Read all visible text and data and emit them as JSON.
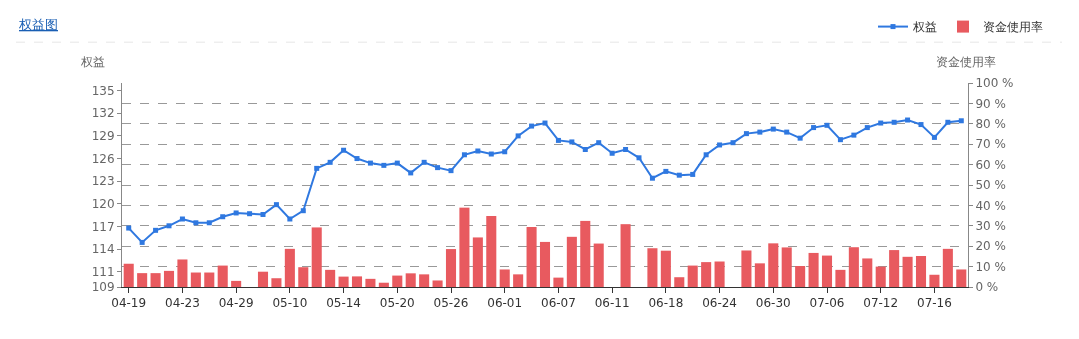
{
  "chart_data": {
    "type": "bar",
    "title": "权益图",
    "ylabel": "权益",
    "y2label": "资金使用率",
    "categories": [
      "04-19",
      null,
      null,
      null,
      "04-23",
      null,
      null,
      null,
      "04-29",
      null,
      null,
      null,
      "05-10",
      null,
      null,
      null,
      "05-14",
      null,
      null,
      null,
      "05-20",
      null,
      null,
      null,
      "05-26",
      null,
      null,
      null,
      "06-01",
      null,
      null,
      null,
      "06-07",
      null,
      null,
      null,
      "06-11",
      null,
      null,
      null,
      "06-18",
      null,
      null,
      null,
      "06-24",
      null,
      null,
      null,
      "06-30",
      null,
      null,
      null,
      "07-06",
      null,
      null,
      null,
      "07-12",
      null,
      null,
      null,
      "07-16",
      null,
      null
    ],
    "series": [
      {
        "name": "权益",
        "type": "line",
        "color": "#2f78e0",
        "values": [
          116.8,
          114.9,
          116.5,
          117.1,
          118.0,
          117.5,
          117.5,
          118.3,
          118.8,
          118.7,
          118.6,
          119.9,
          118.0,
          119.1,
          124.7,
          125.5,
          127.1,
          126.0,
          125.4,
          125.1,
          125.4,
          124.1,
          125.5,
          124.8,
          124.4,
          126.5,
          127.0,
          126.6,
          126.9,
          129.0,
          130.3,
          130.7,
          128.4,
          128.2,
          127.2,
          128.1,
          126.7,
          127.2,
          126.1,
          123.4,
          124.3,
          123.8,
          123.9,
          126.5,
          127.8,
          128.1,
          129.3,
          129.5,
          129.9,
          129.5,
          128.7,
          130.1,
          130.4,
          128.5,
          129.1,
          130.1,
          130.7,
          130.8,
          131.1,
          130.5,
          128.8,
          130.8,
          131.0
        ]
      },
      {
        "name": "资金使用率",
        "axis": "y2",
        "color": "#e85a5f",
        "values": [
          11.4,
          6.8,
          6.8,
          7.9,
          13.5,
          7.1,
          7.1,
          10.5,
          3.0,
          0,
          7.5,
          4.3,
          18.7,
          9.7,
          29.2,
          8.4,
          5.1,
          5.2,
          4.0,
          2.1,
          5.6,
          6.7,
          6.2,
          3.2,
          18.6,
          38.9,
          24.3,
          34.8,
          8.6,
          6.2,
          29.4,
          22.1,
          4.6,
          24.6,
          32.4,
          21.3,
          0,
          30.8,
          0,
          19.0,
          17.8,
          4.8,
          10.5,
          12.2,
          12.5,
          0,
          17.9,
          11.6,
          21.4,
          19.4,
          10.3,
          16.7,
          15.4,
          8.4,
          19.5,
          14.0,
          10.0,
          18.1,
          14.8,
          15.2,
          6.0,
          18.7,
          8.6
        ]
      }
    ],
    "ylim": [
      109,
      136
    ],
    "yticks": [
      109,
      111,
      114,
      117,
      120,
      123,
      126,
      129,
      132,
      135
    ],
    "y2lim": [
      0,
      100
    ],
    "y2ticks": [
      {
        "value": 0,
        "label": "0 %"
      },
      {
        "value": 10,
        "label": "10 %"
      },
      {
        "value": 20,
        "label": "20 %"
      },
      {
        "value": 30,
        "label": "30 %"
      },
      {
        "value": 40,
        "label": "40 %"
      },
      {
        "value": 50,
        "label": "50 %"
      },
      {
        "value": 60,
        "label": "60 %"
      },
      {
        "value": 70,
        "label": "70 %"
      },
      {
        "value": 80,
        "label": "80 %"
      },
      {
        "value": 90,
        "label": "90 %"
      },
      {
        "value": 100,
        "label": "100 %"
      }
    ],
    "grid": "y",
    "legend": "top right",
    "marker": "square",
    "line_style": "solid"
  }
}
